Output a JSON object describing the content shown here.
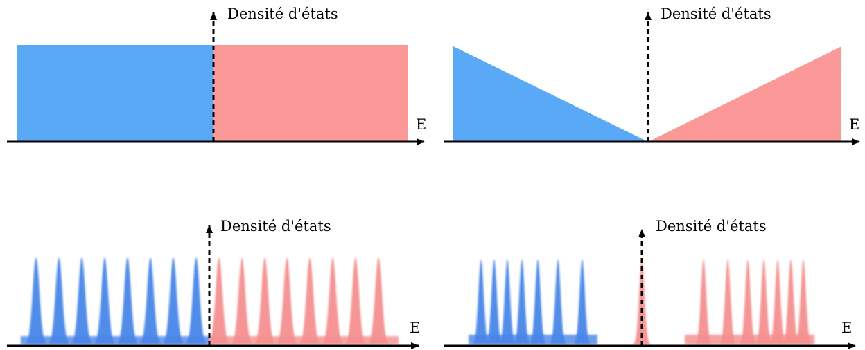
{
  "panels": [
    {
      "y_label": "Densité d'états",
      "x_label": "E",
      "shape": "constant"
    },
    {
      "y_label": "Densité d'états",
      "x_label": "E",
      "shape": "linear-v"
    },
    {
      "y_label": "Densité d'états",
      "x_label": "E",
      "shape": "equally-spaced-peaks"
    },
    {
      "y_label": "Densité d'états",
      "x_label": "E",
      "shape": "landau-levels-with-zero-peak"
    }
  ],
  "colors": {
    "negative_energy": "#5aa9f7",
    "positive_energy": "#fb9999",
    "negative_peaks": "#4a86e8",
    "positive_peaks": "#f48f8f",
    "axis": "#000000"
  }
}
